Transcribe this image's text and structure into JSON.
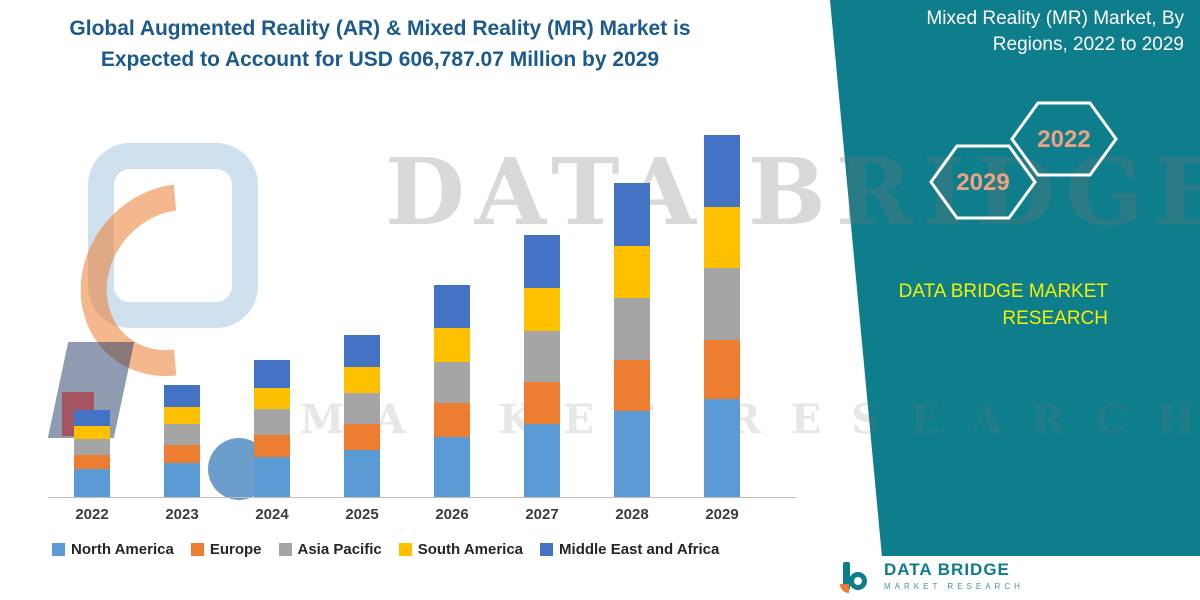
{
  "header": {
    "title_line1": "Global Augmented Reality (AR) & Mixed Reality (MR) Market is",
    "title_line2": "Expected to Account for USD 606,787.07 Million by 2029"
  },
  "band": {
    "title_line1": "Mixed Reality (MR) Market, By",
    "title_line2": "Regions, 2022 to 2029",
    "hex_year_left": "2029",
    "hex_year_right": "2022",
    "brand_line1": "DATA BRIDGE MARKET",
    "brand_line2": "RESEARCH",
    "colors": {
      "band_teal": "#0E7D8C",
      "hex_year_text": "#EDA283",
      "brand_yellow": "#F2F200"
    }
  },
  "watermark": {
    "line1": "DATA BRIDGE",
    "line2": "MARKET RESEARCH"
  },
  "footer_logo": {
    "name": "DATA BRIDGE",
    "subtitle": "MARKET RESEARCH"
  },
  "chart_data": {
    "type": "bar",
    "stacked": true,
    "title": "Global Augmented Reality (AR) & Mixed Reality (MR) Market is Expected to Account for USD 606,787.07 Million by 2029",
    "xlabel": "",
    "ylabel": "",
    "y_axis_visible": false,
    "grid": false,
    "legend_position": "bottom",
    "units": "relative market size (no y-axis scale shown in image)",
    "categories": [
      "2022",
      "2023",
      "2024",
      "2025",
      "2026",
      "2027",
      "2028",
      "2029"
    ],
    "series": [
      {
        "name": "North America",
        "color": "#5B9BD5",
        "values": [
          28,
          34,
          40,
          47,
          60,
          73,
          86,
          98
        ]
      },
      {
        "name": "Europe",
        "color": "#ED7D31",
        "values": [
          14,
          18,
          22,
          26,
          34,
          42,
          51,
          59
        ]
      },
      {
        "name": "Asia Pacific",
        "color": "#A5A5A5",
        "values": [
          16,
          21,
          26,
          31,
          41,
          51,
          62,
          72
        ]
      },
      {
        "name": "South America",
        "color": "#FFC000",
        "values": [
          13,
          17,
          21,
          26,
          34,
          43,
          52,
          61
        ]
      },
      {
        "name": "Middle East and Africa",
        "color": "#4472C4",
        "values": [
          16,
          22,
          28,
          32,
          43,
          53,
          63,
          72
        ]
      }
    ],
    "totals_relative": [
      87,
      112,
      137,
      162,
      212,
      262,
      314,
      362
    ]
  }
}
